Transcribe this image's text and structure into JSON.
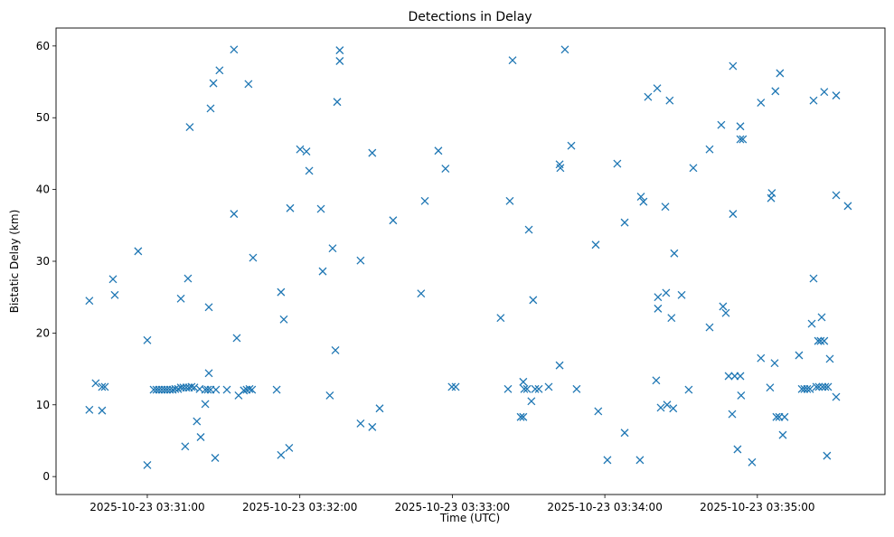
{
  "chart_data": {
    "type": "scatter",
    "title": "Detections in Delay",
    "xlabel": "Time (UTC)",
    "ylabel": "Bistatic Delay (km)",
    "x_units": "seconds after 2025-10-23 03:30:00 UTC",
    "xlim": [
      24.1,
      350.2
    ],
    "ylim": [
      -2.5,
      62.5
    ],
    "grid": false,
    "marker": "x",
    "color": "#1f77b4",
    "x_ticks": [
      {
        "value": 60,
        "label": "2025-10-23 03:31:00"
      },
      {
        "value": 120,
        "label": "2025-10-23 03:32:00"
      },
      {
        "value": 180,
        "label": "2025-10-23 03:33:00"
      },
      {
        "value": 240,
        "label": "2025-10-23 03:34:00"
      },
      {
        "value": 300,
        "label": "2025-10-23 03:35:00"
      }
    ],
    "y_ticks": [
      {
        "value": 0,
        "label": "0"
      },
      {
        "value": 10,
        "label": "10"
      },
      {
        "value": 20,
        "label": "20"
      },
      {
        "value": 30,
        "label": "30"
      },
      {
        "value": 40,
        "label": "40"
      },
      {
        "value": 50,
        "label": "50"
      },
      {
        "value": 60,
        "label": "60"
      }
    ],
    "points": [
      [
        37.2,
        24.5
      ],
      [
        37.2,
        9.3
      ],
      [
        39.7,
        13.0
      ],
      [
        42.2,
        12.5
      ],
      [
        43.3,
        12.5
      ],
      [
        42.2,
        9.2
      ],
      [
        46.5,
        27.5
      ],
      [
        47.2,
        25.3
      ],
      [
        56.4,
        31.4
      ],
      [
        60,
        19.0
      ],
      [
        60,
        1.6
      ],
      [
        62.5,
        12.1
      ],
      [
        63.6,
        12.1
      ],
      [
        64.6,
        12.1
      ],
      [
        65.7,
        12.1
      ],
      [
        66.8,
        12.1
      ],
      [
        67.8,
        12.1
      ],
      [
        68.9,
        12.1
      ],
      [
        70.0,
        12.1
      ],
      [
        71.0,
        12.2
      ],
      [
        72.1,
        12.2
      ],
      [
        73.2,
        12.4
      ],
      [
        74.2,
        12.4
      ],
      [
        75.3,
        12.4
      ],
      [
        76.4,
        12.4
      ],
      [
        77.4,
        12.5
      ],
      [
        78.5,
        12.4
      ],
      [
        80.6,
        12.2
      ],
      [
        82.8,
        12.1
      ],
      [
        83.8,
        12.1
      ],
      [
        84.9,
        12.1
      ],
      [
        87.0,
        12.1
      ],
      [
        91.3,
        12.1
      ],
      [
        73.2,
        24.8
      ],
      [
        74.9,
        4.2
      ],
      [
        76.0,
        27.6
      ],
      [
        76.7,
        48.7
      ],
      [
        79.5,
        7.7
      ],
      [
        81.0,
        5.5
      ],
      [
        82.8,
        10.1
      ],
      [
        84.2,
        14.4
      ],
      [
        84.2,
        23.6
      ],
      [
        84.9,
        51.3
      ],
      [
        86.0,
        54.8
      ],
      [
        86.7,
        2.6
      ],
      [
        88.4,
        56.6
      ],
      [
        94.1,
        59.5
      ],
      [
        94.1,
        36.6
      ],
      [
        95.2,
        19.3
      ],
      [
        95.9,
        11.3
      ],
      [
        98.0,
        12.0
      ],
      [
        99.1,
        12.1
      ],
      [
        100.2,
        12.2
      ],
      [
        101.2,
        12.1
      ],
      [
        99.8,
        54.7
      ],
      [
        101.6,
        30.5
      ],
      [
        110.9,
        12.1
      ],
      [
        112.6,
        3.0
      ],
      [
        112.6,
        25.7
      ],
      [
        113.7,
        21.9
      ],
      [
        115.8,
        4.0
      ],
      [
        116.2,
        37.4
      ],
      [
        120.1,
        45.6
      ],
      [
        122.6,
        45.3
      ],
      [
        123.7,
        42.6
      ],
      [
        128.3,
        37.3
      ],
      [
        129.0,
        28.6
      ],
      [
        131.8,
        11.3
      ],
      [
        132.9,
        31.8
      ],
      [
        134.0,
        17.6
      ],
      [
        134.7,
        52.2
      ],
      [
        135.7,
        59.4
      ],
      [
        135.7,
        57.9
      ],
      [
        143.9,
        30.1
      ],
      [
        143.9,
        7.4
      ],
      [
        148.5,
        6.9
      ],
      [
        148.5,
        45.1
      ],
      [
        151.4,
        9.5
      ],
      [
        156.7,
        35.7
      ],
      [
        167.7,
        25.5
      ],
      [
        169.2,
        38.4
      ],
      [
        174.5,
        45.4
      ],
      [
        177.3,
        42.9
      ],
      [
        179.8,
        12.5
      ],
      [
        181.3,
        12.5
      ],
      [
        199.0,
        22.1
      ],
      [
        201.9,
        12.2
      ],
      [
        202.6,
        38.4
      ],
      [
        203.7,
        58.0
      ],
      [
        206.9,
        8.3
      ],
      [
        207.9,
        8.3
      ],
      [
        207.9,
        13.2
      ],
      [
        208.3,
        12.2
      ],
      [
        209.4,
        12.2
      ],
      [
        210.1,
        34.4
      ],
      [
        211.1,
        10.5
      ],
      [
        211.8,
        24.6
      ],
      [
        212.6,
        12.2
      ],
      [
        214.0,
        12.2
      ],
      [
        217.9,
        12.5
      ],
      [
        222.2,
        15.5
      ],
      [
        222.2,
        43.5
      ],
      [
        222.5,
        43.0
      ],
      [
        224.3,
        59.5
      ],
      [
        226.8,
        46.1
      ],
      [
        228.9,
        12.2
      ],
      [
        236.4,
        32.3
      ],
      [
        237.4,
        9.1
      ],
      [
        241.0,
        2.3
      ],
      [
        244.9,
        43.6
      ],
      [
        247.8,
        35.4
      ],
      [
        247.8,
        6.1
      ],
      [
        253.8,
        2.3
      ],
      [
        254.2,
        39.0
      ],
      [
        255.2,
        38.3
      ],
      [
        257.0,
        52.9
      ],
      [
        260.2,
        13.4
      ],
      [
        260.6,
        54.1
      ],
      [
        260.9,
        25.0
      ],
      [
        260.9,
        23.4
      ],
      [
        262.0,
        9.6
      ],
      [
        263.8,
        37.6
      ],
      [
        264.1,
        25.6
      ],
      [
        264.5,
        10.0
      ],
      [
        265.5,
        52.4
      ],
      [
        266.2,
        22.1
      ],
      [
        266.9,
        9.5
      ],
      [
        267.3,
        31.1
      ],
      [
        270.2,
        25.3
      ],
      [
        273.0,
        12.1
      ],
      [
        274.8,
        43.0
      ],
      [
        281.2,
        20.8
      ],
      [
        281.2,
        45.6
      ],
      [
        285.8,
        49.0
      ],
      [
        286.5,
        23.7
      ],
      [
        287.6,
        22.8
      ],
      [
        288.7,
        14.0
      ],
      [
        290.1,
        8.7
      ],
      [
        290.4,
        36.6
      ],
      [
        290.4,
        57.2
      ],
      [
        291.1,
        14.0
      ],
      [
        292.2,
        3.8
      ],
      [
        293.3,
        48.8
      ],
      [
        293.3,
        47.0
      ],
      [
        293.3,
        14.0
      ],
      [
        293.6,
        11.3
      ],
      [
        294.3,
        47.0
      ],
      [
        297.9,
        2.0
      ],
      [
        301.4,
        52.1
      ],
      [
        301.4,
        16.5
      ],
      [
        305.0,
        12.4
      ],
      [
        305.4,
        38.8
      ],
      [
        305.7,
        39.5
      ],
      [
        306.8,
        15.8
      ],
      [
        307.1,
        53.7
      ],
      [
        307.5,
        8.3
      ],
      [
        308.6,
        8.3
      ],
      [
        308.9,
        56.2
      ],
      [
        310.0,
        5.8
      ],
      [
        310.7,
        8.3
      ],
      [
        316.4,
        16.9
      ],
      [
        317.5,
        12.2
      ],
      [
        318.5,
        12.2
      ],
      [
        319.6,
        12.2
      ],
      [
        320.7,
        12.2
      ],
      [
        321.4,
        21.3
      ],
      [
        322.1,
        52.4
      ],
      [
        322.1,
        27.6
      ],
      [
        323.2,
        12.5
      ],
      [
        323.9,
        18.9
      ],
      [
        324.2,
        12.5
      ],
      [
        324.9,
        18.9
      ],
      [
        325.3,
        22.2
      ],
      [
        325.6,
        12.5
      ],
      [
        326.3,
        18.9
      ],
      [
        326.3,
        53.6
      ],
      [
        326.7,
        12.5
      ],
      [
        327.4,
        2.9
      ],
      [
        327.8,
        12.5
      ],
      [
        328.5,
        16.4
      ],
      [
        331.0,
        53.1
      ],
      [
        331.0,
        39.2
      ],
      [
        331.0,
        11.1
      ],
      [
        335.6,
        37.7
      ]
    ]
  }
}
